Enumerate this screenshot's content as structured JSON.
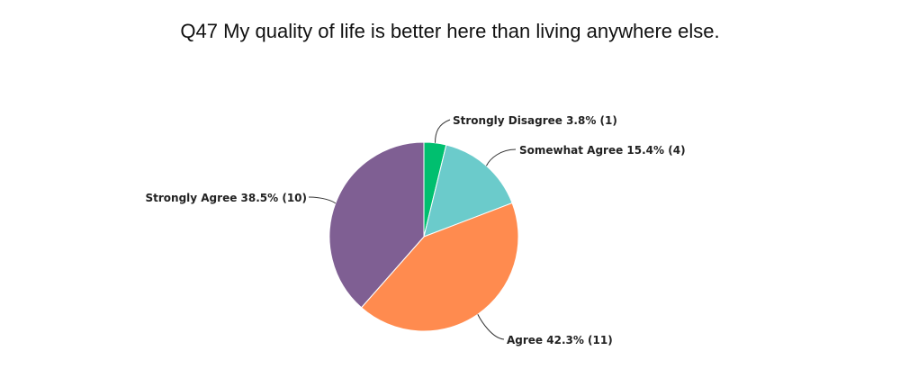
{
  "chart_data": {
    "type": "pie",
    "title": "Q47 My quality of life is better here than living anywhere else.",
    "slices": [
      {
        "label": "Strongly Disagree",
        "percent": 3.8,
        "count": 1,
        "color": "#00bf6f"
      },
      {
        "label": "Somewhat Agree",
        "percent": 15.4,
        "count": 4,
        "color": "#6bcbcb"
      },
      {
        "label": "Agree",
        "percent": 42.3,
        "count": 11,
        "color": "#ff8b4f"
      },
      {
        "label": "Strongly Agree",
        "percent": 38.5,
        "count": 10,
        "color": "#7f5f93"
      }
    ],
    "labels_text": [
      "Strongly Disagree 3.8% (1)",
      "Somewhat Agree 15.4% (4)",
      "Agree 42.3% (11)",
      "Strongly Agree 38.5% (10)"
    ],
    "start_angle": "12 o'clock",
    "direction": "clockwise"
  }
}
